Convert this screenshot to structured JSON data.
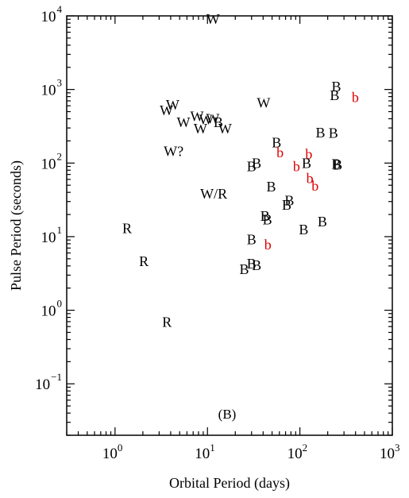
{
  "chart_data": {
    "type": "scatter",
    "title": "",
    "xlabel": "Orbital Period (days)",
    "ylabel": "Pulse Period (seconds)",
    "panel_label": "(B)",
    "xscale": "log",
    "yscale": "log",
    "xlim": [
      0.3,
      1000
    ],
    "ylim": [
      0.02,
      10000
    ],
    "grid": false,
    "x_ticks": [
      {
        "value": 1,
        "base": "10",
        "exp": "0"
      },
      {
        "value": 10,
        "base": "10",
        "exp": "1"
      },
      {
        "value": 100,
        "base": "10",
        "exp": "2"
      },
      {
        "value": 1000,
        "base": "10",
        "exp": "3"
      }
    ],
    "y_ticks": [
      {
        "value": 0.1,
        "base": "10",
        "exp": "−1"
      },
      {
        "value": 1,
        "base": "10",
        "exp": "0"
      },
      {
        "value": 10,
        "base": "10",
        "exp": "1"
      },
      {
        "value": 100,
        "base": "10",
        "exp": "2"
      },
      {
        "value": 1000,
        "base": "10",
        "exp": "3"
      },
      {
        "value": 10000,
        "base": "10",
        "exp": "4"
      }
    ],
    "colors": {
      "black": "#000000",
      "red": "#dd0000"
    },
    "points": [
      {
        "x": 11.5,
        "y": 9000,
        "label": "W",
        "color": "black"
      },
      {
        "x": 4.2,
        "y": 620,
        "label": "W",
        "color": "black"
      },
      {
        "x": 3.6,
        "y": 520,
        "label": "W",
        "color": "black"
      },
      {
        "x": 7.7,
        "y": 430,
        "label": "W",
        "color": "black"
      },
      {
        "x": 5.5,
        "y": 360,
        "label": "W",
        "color": "black"
      },
      {
        "x": 9.6,
        "y": 390,
        "label": "W",
        "color": "black"
      },
      {
        "x": 11.4,
        "y": 400,
        "label": "W",
        "color": "black"
      },
      {
        "x": 13.1,
        "y": 360,
        "label": "B",
        "color": "black"
      },
      {
        "x": 8.4,
        "y": 295,
        "label": "W",
        "color": "black"
      },
      {
        "x": 15.5,
        "y": 295,
        "label": "W",
        "color": "black"
      },
      {
        "x": 4.3,
        "y": 145,
        "label": "W?",
        "color": "black"
      },
      {
        "x": 40.5,
        "y": 660,
        "label": "W",
        "color": "black"
      },
      {
        "x": 11.7,
        "y": 38,
        "label": "W/R",
        "color": "black"
      },
      {
        "x": 1.35,
        "y": 13,
        "label": "R",
        "color": "black"
      },
      {
        "x": 2.05,
        "y": 4.6,
        "label": "R",
        "color": "black"
      },
      {
        "x": 3.65,
        "y": 0.69,
        "label": "R",
        "color": "black"
      },
      {
        "x": 248,
        "y": 1100,
        "label": "B",
        "color": "black"
      },
      {
        "x": 238,
        "y": 830,
        "label": "B",
        "color": "black"
      },
      {
        "x": 398,
        "y": 780,
        "label": "b",
        "color": "red"
      },
      {
        "x": 167,
        "y": 260,
        "label": "B",
        "color": "black"
      },
      {
        "x": 230,
        "y": 255,
        "label": "B",
        "color": "black"
      },
      {
        "x": 56,
        "y": 190,
        "label": "B",
        "color": "black"
      },
      {
        "x": 61,
        "y": 140,
        "label": "b",
        "color": "red"
      },
      {
        "x": 125,
        "y": 133,
        "label": "b",
        "color": "red"
      },
      {
        "x": 34,
        "y": 100,
        "label": "B",
        "color": "black"
      },
      {
        "x": 30,
        "y": 90,
        "label": "B",
        "color": "black"
      },
      {
        "x": 118,
        "y": 100,
        "label": "B",
        "color": "black"
      },
      {
        "x": 92,
        "y": 90,
        "label": "b",
        "color": "red"
      },
      {
        "x": 247,
        "y": 97,
        "label": "B",
        "color": "black"
      },
      {
        "x": 256,
        "y": 95,
        "label": "B",
        "color": "black"
      },
      {
        "x": 128,
        "y": 62,
        "label": "b",
        "color": "red"
      },
      {
        "x": 146,
        "y": 49,
        "label": "b",
        "color": "red"
      },
      {
        "x": 49,
        "y": 48,
        "label": "B",
        "color": "black"
      },
      {
        "x": 77,
        "y": 31,
        "label": "B",
        "color": "black"
      },
      {
        "x": 72,
        "y": 27,
        "label": "B",
        "color": "black"
      },
      {
        "x": 42,
        "y": 19,
        "label": "B",
        "color": "black"
      },
      {
        "x": 44.5,
        "y": 17,
        "label": "B",
        "color": "black"
      },
      {
        "x": 175,
        "y": 16,
        "label": "B",
        "color": "black"
      },
      {
        "x": 110,
        "y": 12.5,
        "label": "B",
        "color": "black"
      },
      {
        "x": 30,
        "y": 9.2,
        "label": "B",
        "color": "black"
      },
      {
        "x": 45,
        "y": 7.8,
        "label": "b",
        "color": "red"
      },
      {
        "x": 30,
        "y": 4.3,
        "label": "B",
        "color": "black"
      },
      {
        "x": 34,
        "y": 4.1,
        "label": "B",
        "color": "black"
      },
      {
        "x": 25,
        "y": 3.6,
        "label": "B",
        "color": "black"
      }
    ]
  }
}
